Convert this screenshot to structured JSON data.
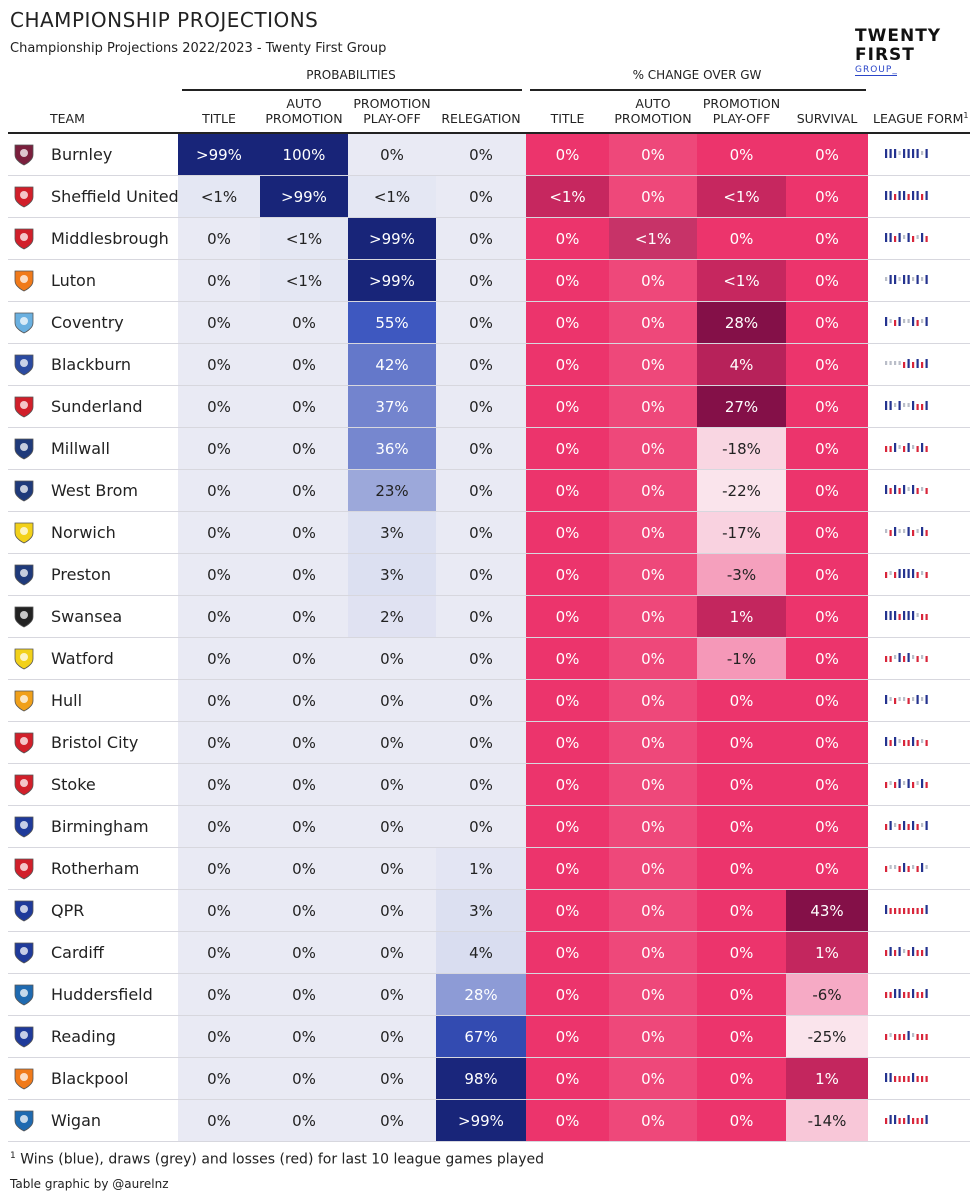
{
  "header": {
    "title": "CHAMPIONSHIP PROJECTIONS",
    "subtitle": "Championship Projections 2022/2023 - Twenty First Group",
    "logo_line1": "TWENTY",
    "logo_line2": "FIRST",
    "logo_line3": "GROUP_"
  },
  "groups": {
    "probabilities": "PROBABILITIES",
    "change": "% CHANGE OVER GW"
  },
  "columns": {
    "team": "TEAM",
    "league_form": "LEAGUE FORM",
    "league_form_note": "1",
    "prob": [
      {
        "line1": "",
        "line2": "TITLE"
      },
      {
        "line1": "AUTO",
        "line2": "PROMOTION"
      },
      {
        "line1": "PROMOTION",
        "line2": "PLAY-OFF"
      },
      {
        "line1": "",
        "line2": "RELEGATION"
      }
    ],
    "change": [
      {
        "line1": "",
        "line2": "TITLE"
      },
      {
        "line1": "AUTO",
        "line2": "PROMOTION"
      },
      {
        "line1": "PROMOTION",
        "line2": "PLAY-OFF"
      },
      {
        "line1": "",
        "line2": "SURVIVAL"
      }
    ]
  },
  "footer": {
    "note_mark": "1",
    "note": "Wins (blue), draws (grey) and losses (red) for last 10 league games played",
    "credit": "Table graphic by @aurelnz"
  },
  "chart_data": {
    "type": "table",
    "title": "CHAMPIONSHIP PROJECTIONS",
    "columns": [
      "TEAM",
      "TITLE",
      "AUTO PROMOTION",
      "PROMOTION PLAY-OFF",
      "RELEGATION",
      "TITLE",
      "AUTO PROMOTION",
      "PROMOTION PLAY-OFF",
      "SURVIVAL",
      "LEAGUE FORM"
    ],
    "rows": [
      {
        "team": "Burnley",
        "crest": "#7a1f3d",
        "prob": [
          ">99%",
          "100%",
          "0%",
          "0%"
        ],
        "prob_v": [
          99.5,
          100,
          0,
          0
        ],
        "chg": [
          "0%",
          "0%",
          "0%",
          "0%"
        ],
        "chg_v": [
          0,
          0,
          0,
          0
        ],
        "form": "WWWDWWWWDW"
      },
      {
        "team": "Sheffield United",
        "crest": "#d11f2a",
        "prob": [
          "<1%",
          ">99%",
          "<1%",
          "0%"
        ],
        "prob_v": [
          0.5,
          99.5,
          0.5,
          0
        ],
        "chg": [
          "<1%",
          "0%",
          "<1%",
          "0%"
        ],
        "chg_v": [
          0.5,
          0,
          0.5,
          0
        ],
        "form": "WWLWWLWWLW"
      },
      {
        "team": "Middlesbrough",
        "crest": "#d11f2a",
        "prob": [
          "0%",
          "<1%",
          ">99%",
          "0%"
        ],
        "prob_v": [
          0,
          0.5,
          99.5,
          0
        ],
        "chg": [
          "0%",
          "<1%",
          "0%",
          "0%"
        ],
        "chg_v": [
          0,
          0.5,
          0,
          0
        ],
        "form": "WWLWDWLDWL"
      },
      {
        "team": "Luton",
        "crest": "#f07a1a",
        "prob": [
          "0%",
          "<1%",
          ">99%",
          "0%"
        ],
        "prob_v": [
          0,
          0.5,
          99.5,
          0
        ],
        "chg": [
          "0%",
          "0%",
          "<1%",
          "0%"
        ],
        "chg_v": [
          0,
          0,
          0.5,
          0
        ],
        "form": "DWWDWWDWDW"
      },
      {
        "team": "Coventry",
        "crest": "#6ab0e0",
        "prob": [
          "0%",
          "0%",
          "55%",
          "0%"
        ],
        "prob_v": [
          0,
          0,
          55,
          0
        ],
        "chg": [
          "0%",
          "0%",
          "28%",
          "0%"
        ],
        "chg_v": [
          0,
          0,
          28,
          0
        ],
        "form": "WDLWDDWLDW"
      },
      {
        "team": "Blackburn",
        "crest": "#2b4aa0",
        "prob": [
          "0%",
          "0%",
          "42%",
          "0%"
        ],
        "prob_v": [
          0,
          0,
          42,
          0
        ],
        "chg": [
          "0%",
          "0%",
          "4%",
          "0%"
        ],
        "chg_v": [
          0,
          0,
          4,
          0
        ],
        "form": "DDDDLWLWLW"
      },
      {
        "team": "Sunderland",
        "crest": "#d11f2a",
        "prob": [
          "0%",
          "0%",
          "37%",
          "0%"
        ],
        "prob_v": [
          0,
          0,
          37,
          0
        ],
        "chg": [
          "0%",
          "0%",
          "27%",
          "0%"
        ],
        "chg_v": [
          0,
          0,
          27,
          0
        ],
        "form": "WWDWDDWLLW"
      },
      {
        "team": "Millwall",
        "crest": "#1f3a7a",
        "prob": [
          "0%",
          "0%",
          "36%",
          "0%"
        ],
        "prob_v": [
          0,
          0,
          36,
          0
        ],
        "chg": [
          "0%",
          "0%",
          "-18%",
          "0%"
        ],
        "chg_v": [
          0,
          0,
          -18,
          0
        ],
        "form": "LLWDLWDLWL"
      },
      {
        "team": "West Brom",
        "crest": "#1f3a7a",
        "prob": [
          "0%",
          "0%",
          "23%",
          "0%"
        ],
        "prob_v": [
          0,
          0,
          23,
          0
        ],
        "chg": [
          "0%",
          "0%",
          "-22%",
          "0%"
        ],
        "chg_v": [
          0,
          0,
          -22,
          0
        ],
        "form": "WLWLWDWLDL"
      },
      {
        "team": "Norwich",
        "crest": "#f2d11a",
        "prob": [
          "0%",
          "0%",
          "3%",
          "0%"
        ],
        "prob_v": [
          0,
          0,
          3,
          0
        ],
        "chg": [
          "0%",
          "0%",
          "-17%",
          "0%"
        ],
        "chg_v": [
          0,
          0,
          -17,
          0
        ],
        "form": "DLWDDWLDWL"
      },
      {
        "team": "Preston",
        "crest": "#1f3a7a",
        "prob": [
          "0%",
          "0%",
          "3%",
          "0%"
        ],
        "prob_v": [
          0,
          0,
          3,
          0
        ],
        "chg": [
          "0%",
          "0%",
          "-3%",
          "0%"
        ],
        "chg_v": [
          0,
          0,
          -3,
          0
        ],
        "form": "LDLWWWWLDL"
      },
      {
        "team": "Swansea",
        "crest": "#222222",
        "prob": [
          "0%",
          "0%",
          "2%",
          "0%"
        ],
        "prob_v": [
          0,
          0,
          2,
          0
        ],
        "chg": [
          "0%",
          "0%",
          "1%",
          "0%"
        ],
        "chg_v": [
          0,
          0,
          1,
          0
        ],
        "form": "WWWLWWWDLL"
      },
      {
        "team": "Watford",
        "crest": "#f2d11a",
        "prob": [
          "0%",
          "0%",
          "0%",
          "0%"
        ],
        "prob_v": [
          0,
          0,
          0,
          0
        ],
        "chg": [
          "0%",
          "0%",
          "-1%",
          "0%"
        ],
        "chg_v": [
          0,
          0,
          -1,
          0
        ],
        "form": "LLDWLWDLDL"
      },
      {
        "team": "Hull",
        "crest": "#f0a01a",
        "prob": [
          "0%",
          "0%",
          "0%",
          "0%"
        ],
        "prob_v": [
          0,
          0,
          0,
          0
        ],
        "chg": [
          "0%",
          "0%",
          "0%",
          "0%"
        ],
        "chg_v": [
          0,
          0,
          0,
          0
        ],
        "form": "WDLDDLDWDW"
      },
      {
        "team": "Bristol City",
        "crest": "#d11f2a",
        "prob": [
          "0%",
          "0%",
          "0%",
          "0%"
        ],
        "prob_v": [
          0,
          0,
          0,
          0
        ],
        "chg": [
          "0%",
          "0%",
          "0%",
          "0%"
        ],
        "chg_v": [
          0,
          0,
          0,
          0
        ],
        "form": "WLWDLLWLDL"
      },
      {
        "team": "Stoke",
        "crest": "#d11f2a",
        "prob": [
          "0%",
          "0%",
          "0%",
          "0%"
        ],
        "prob_v": [
          0,
          0,
          0,
          0
        ],
        "chg": [
          "0%",
          "0%",
          "0%",
          "0%"
        ],
        "chg_v": [
          0,
          0,
          0,
          0
        ],
        "form": "LDLWDWLDWL"
      },
      {
        "team": "Birmingham",
        "crest": "#1f3a9a",
        "prob": [
          "0%",
          "0%",
          "0%",
          "0%"
        ],
        "prob_v": [
          0,
          0,
          0,
          0
        ],
        "chg": [
          "0%",
          "0%",
          "0%",
          "0%"
        ],
        "chg_v": [
          0,
          0,
          0,
          0
        ],
        "form": "LWDLWLWLDW"
      },
      {
        "team": "Rotherham",
        "crest": "#d11f2a",
        "prob": [
          "0%",
          "0%",
          "0%",
          "1%"
        ],
        "prob_v": [
          0,
          0,
          0,
          1
        ],
        "chg": [
          "0%",
          "0%",
          "0%",
          "0%"
        ],
        "chg_v": [
          0,
          0,
          0,
          0
        ],
        "form": "LDDLWLDLWD"
      },
      {
        "team": "QPR",
        "crest": "#1f3a9a",
        "prob": [
          "0%",
          "0%",
          "0%",
          "3%"
        ],
        "prob_v": [
          0,
          0,
          0,
          3
        ],
        "chg": [
          "0%",
          "0%",
          "0%",
          "43%"
        ],
        "chg_v": [
          0,
          0,
          0,
          43
        ],
        "form": "WLLLLLLLLW"
      },
      {
        "team": "Cardiff",
        "crest": "#1f3a9a",
        "prob": [
          "0%",
          "0%",
          "0%",
          "4%"
        ],
        "prob_v": [
          0,
          0,
          0,
          4
        ],
        "chg": [
          "0%",
          "0%",
          "0%",
          "1%"
        ],
        "chg_v": [
          0,
          0,
          0,
          1
        ],
        "form": "LWLWDLWLLW"
      },
      {
        "team": "Huddersfield",
        "crest": "#1f6ab0",
        "prob": [
          "0%",
          "0%",
          "0%",
          "28%"
        ],
        "prob_v": [
          0,
          0,
          0,
          28
        ],
        "chg": [
          "0%",
          "0%",
          "0%",
          "-6%"
        ],
        "chg_v": [
          0,
          0,
          0,
          -6
        ],
        "form": "LLWWLLWLLW"
      },
      {
        "team": "Reading",
        "crest": "#1f3a9a",
        "prob": [
          "0%",
          "0%",
          "0%",
          "67%"
        ],
        "prob_v": [
          0,
          0,
          0,
          67
        ],
        "chg": [
          "0%",
          "0%",
          "0%",
          "-25%"
        ],
        "chg_v": [
          0,
          0,
          0,
          -25
        ],
        "form": "LDLLLWDLLL"
      },
      {
        "team": "Blackpool",
        "crest": "#f07a1a",
        "prob": [
          "0%",
          "0%",
          "0%",
          "98%"
        ],
        "prob_v": [
          0,
          0,
          0,
          98
        ],
        "chg": [
          "0%",
          "0%",
          "0%",
          "1%"
        ],
        "chg_v": [
          0,
          0,
          0,
          1
        ],
        "form": "WWLLLLWLLL"
      },
      {
        "team": "Wigan",
        "crest": "#1f6ab0",
        "prob": [
          "0%",
          "0%",
          "0%",
          ">99%"
        ],
        "prob_v": [
          0,
          0,
          0,
          99.5
        ],
        "chg": [
          "0%",
          "0%",
          "0%",
          "-14%"
        ],
        "chg_v": [
          0,
          0,
          0,
          -14
        ],
        "form": "LWWLLWLLLW"
      }
    ]
  }
}
